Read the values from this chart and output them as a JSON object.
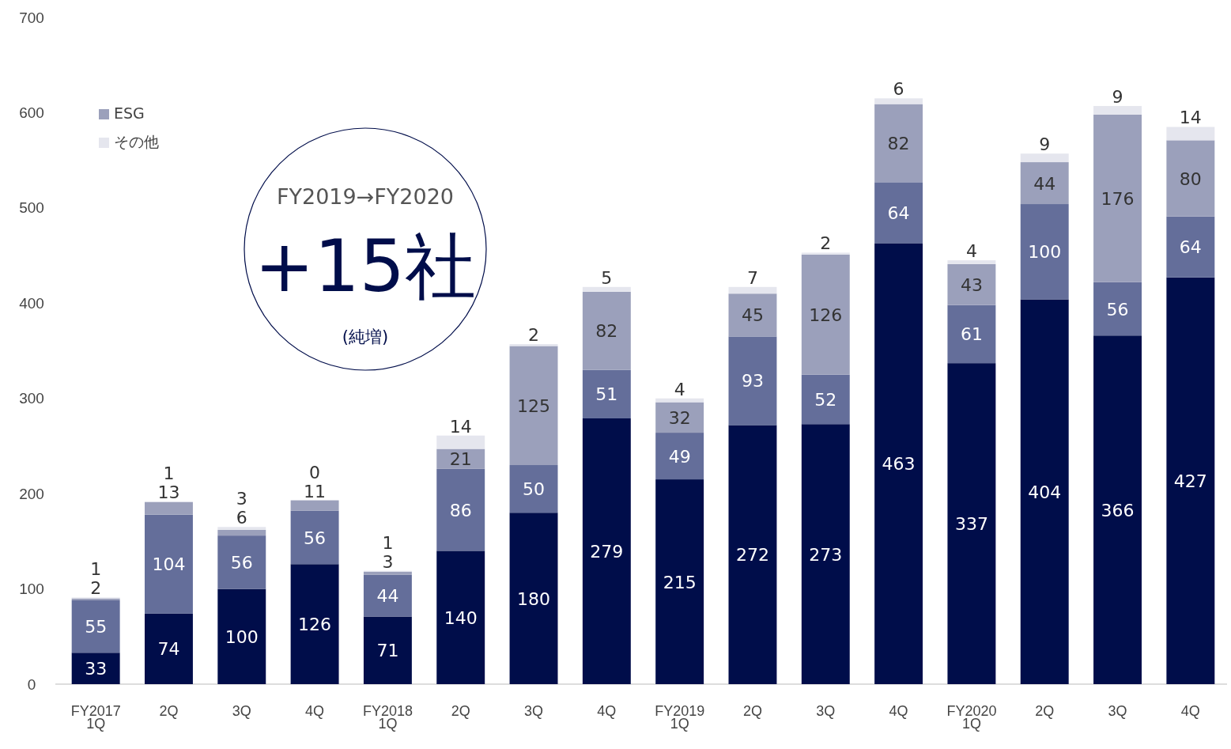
{
  "chart_data": {
    "type": "bar",
    "stacked": true,
    "data_labels": true,
    "legend": "top left",
    "grid": false,
    "categories": [
      "FY2017\n1Q",
      "2Q",
      "3Q",
      "4Q",
      "FY2018\n1Q",
      "2Q",
      "3Q",
      "4Q",
      "FY2019\n1Q",
      "2Q",
      "3Q",
      "4Q",
      "FY2020\n1Q",
      "2Q",
      "3Q",
      "4Q"
    ],
    "ylim": [
      0,
      700
    ],
    "yticks": [
      0,
      100,
      200,
      300,
      400,
      500,
      600,
      700
    ],
    "series": [
      {
        "color": "#000d4a",
        "values": [
          33,
          74,
          100,
          126,
          71,
          140,
          180,
          279,
          215,
          272,
          273,
          463,
          337,
          404,
          366,
          427
        ]
      },
      {
        "color": "#646e9a",
        "values": [
          55,
          104,
          56,
          56,
          44,
          86,
          50,
          51,
          49,
          93,
          52,
          64,
          61,
          100,
          56,
          64
        ]
      },
      {
        "name": "ESG",
        "color": "#9ba0bb",
        "values": [
          2,
          13,
          6,
          11,
          3,
          21,
          125,
          82,
          32,
          45,
          126,
          82,
          43,
          44,
          176,
          80
        ]
      },
      {
        "name": "その他",
        "color": "#e5e6ee",
        "values": [
          1,
          1,
          3,
          0,
          1,
          14,
          2,
          5,
          4,
          7,
          2,
          6,
          4,
          9,
          9,
          14
        ]
      }
    ],
    "annotations": [
      "FY2019→FY2020",
      "+15社",
      "(純増)"
    ]
  }
}
